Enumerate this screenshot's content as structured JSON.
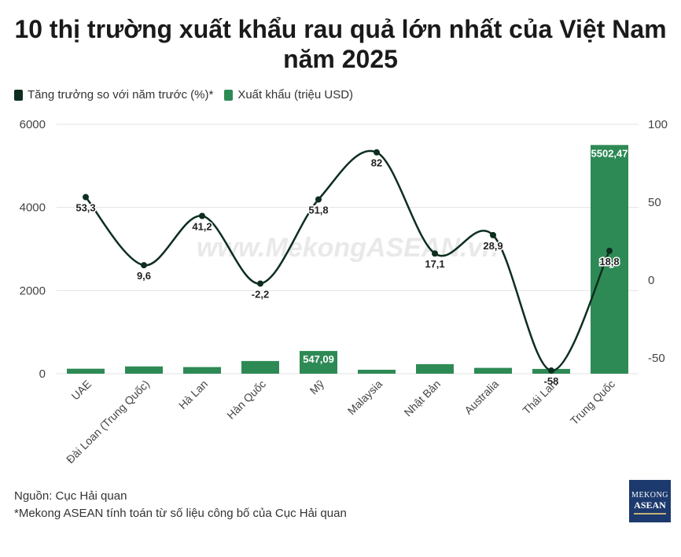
{
  "title": "10 thị trường xuất khẩu rau quả lớn nhất của Việt Nam năm 2025",
  "legend": {
    "growth": "Tăng trưởng so với năm trước (%)*",
    "exports": "Xuất khẩu (triệu USD)"
  },
  "colors": {
    "bar": "#2e8a55",
    "line": "#0d2e1f"
  },
  "watermark": "www.MekongASEAN.vn",
  "footer": {
    "source": "Nguồn: Cục Hải quan",
    "note": "*Mekong ASEAN tính toán từ số liệu công bố của Cục Hải quan"
  },
  "logo": {
    "line1": "MEKONG",
    "line2": "ASEAN"
  },
  "chart_data": {
    "type": "bar",
    "categories": [
      "UAE",
      "Đài Loan (Trung Quốc)",
      "Hà Lan",
      "Hàn Quốc",
      "Mỹ",
      "Malaysia",
      "Nhật Bản",
      "Australia",
      "Thái Lan",
      "Trung Quốc"
    ],
    "series": [
      {
        "name": "Xuất khẩu (triệu USD)",
        "type": "bar",
        "axis": "left",
        "values": [
          120,
          175,
          160,
          305,
          547.09,
          95,
          230,
          140,
          115,
          5502.47
        ],
        "labels": [
          "",
          "",
          "",
          "",
          "547,09",
          "",
          "",
          "",
          "",
          "5502,47"
        ]
      },
      {
        "name": "Tăng trưởng so với năm trước (%)*",
        "type": "line",
        "axis": "right",
        "values": [
          53.3,
          9.6,
          41.2,
          -2.2,
          51.8,
          82,
          17.1,
          28.9,
          -58,
          18.8
        ],
        "labels": [
          "53,3",
          "9,6",
          "41,2",
          "-2,2",
          "51,8",
          "82",
          "17,1",
          "28,9",
          "-58",
          "18,8"
        ]
      }
    ],
    "y_left": {
      "min": 0,
      "max": 6000,
      "ticks": [
        0,
        2000,
        4000,
        6000
      ]
    },
    "y_right": {
      "min": -60,
      "max": 100,
      "ticks": [
        -50,
        0,
        50,
        100
      ]
    },
    "grid": true
  }
}
